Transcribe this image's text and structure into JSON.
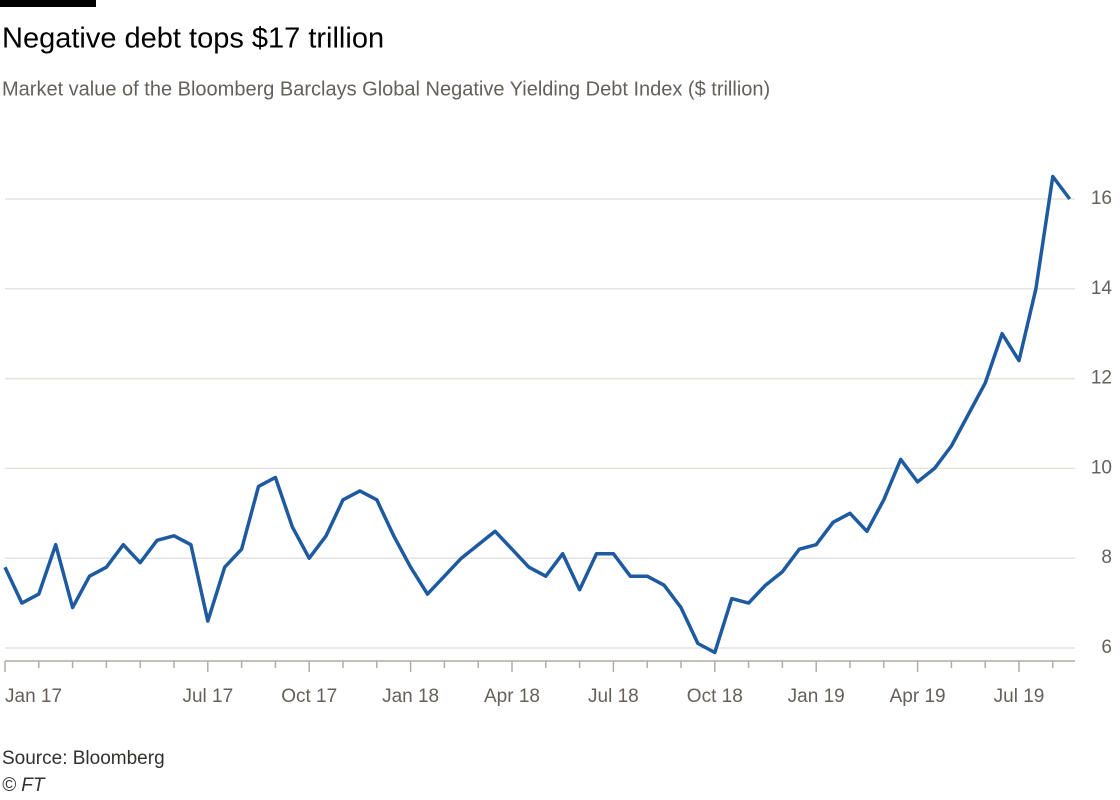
{
  "chart_data": {
    "type": "line",
    "title": "Negative debt tops $17 trillion",
    "subtitle": "Market value of the Bloomberg Barclays Global Negative Yielding Debt Index ($ trillion)",
    "source": "Source: Bloomberg",
    "credit": "© FT",
    "categories": [
      "Jan 17",
      null,
      null,
      null,
      null,
      null,
      null,
      null,
      null,
      null,
      null,
      null,
      "Jul 17",
      null,
      null,
      null,
      null,
      null,
      "Oct 17",
      null,
      null,
      null,
      null,
      null,
      "Jan 18",
      null,
      null,
      null,
      null,
      null,
      "Apr 18",
      null,
      null,
      null,
      null,
      null,
      "Jul 18",
      null,
      null,
      null,
      null,
      null,
      "Oct 18",
      null,
      null,
      null,
      null,
      null,
      "Jan 19",
      null,
      null,
      null,
      null,
      null,
      "Apr 19",
      null,
      null,
      null,
      null,
      null,
      "Jul 19",
      null,
      null,
      null
    ],
    "series": [
      {
        "name": "Market value",
        "color": "#1d5aa0",
        "values": [
          7.8,
          7.0,
          7.2,
          8.3,
          6.9,
          7.6,
          7.8,
          8.3,
          7.9,
          8.4,
          8.5,
          8.3,
          6.6,
          7.8,
          8.2,
          9.6,
          9.8,
          8.7,
          8.0,
          8.5,
          9.3,
          9.5,
          9.3,
          8.5,
          7.8,
          7.2,
          7.6,
          8.0,
          8.3,
          8.6,
          8.2,
          7.8,
          7.6,
          8.1,
          7.3,
          8.1,
          8.1,
          7.6,
          7.6,
          7.4,
          6.9,
          6.1,
          5.9,
          7.1,
          7.0,
          7.4,
          7.7,
          8.2,
          8.3,
          8.8,
          9.0,
          8.6,
          9.3,
          10.2,
          9.7,
          10.0,
          10.5,
          11.2,
          11.9,
          13.0,
          12.4,
          14.0,
          16.5,
          16.0
        ]
      }
    ],
    "ylim": [
      5.7,
      17.3
    ],
    "yticks": [
      6,
      8,
      10,
      12,
      14,
      16
    ],
    "grid": true
  }
}
